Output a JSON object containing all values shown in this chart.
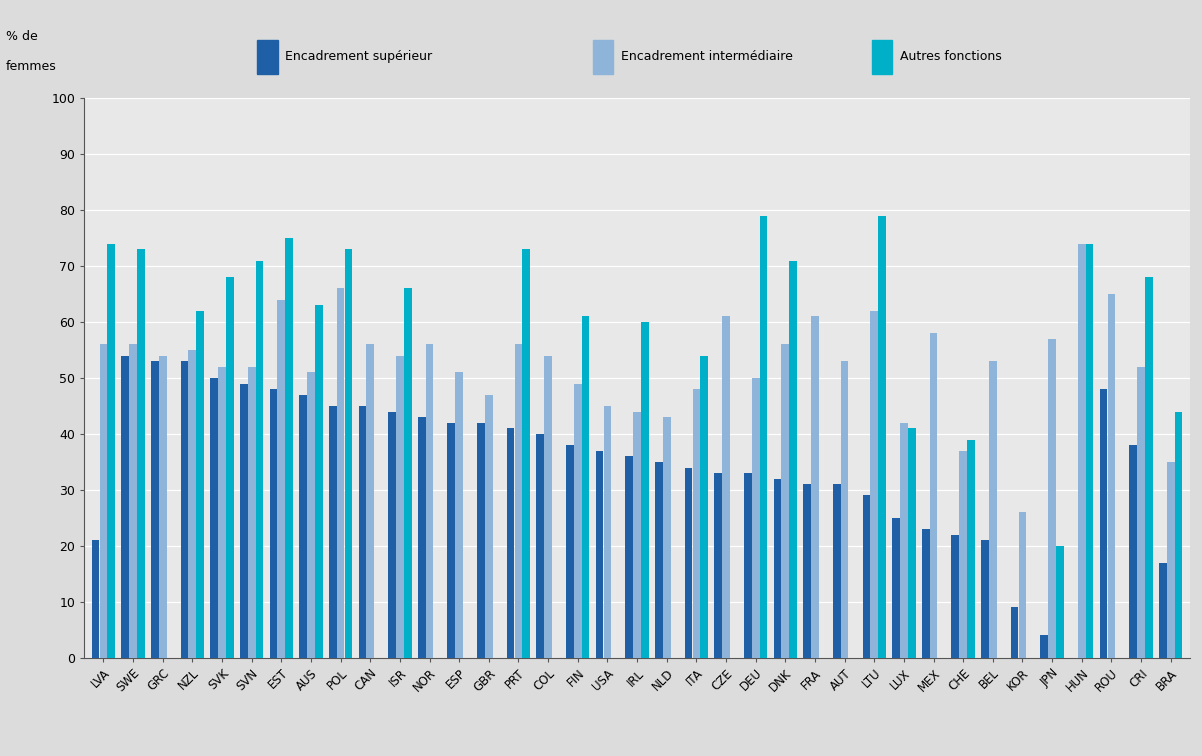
{
  "countries": [
    "LVA",
    "SWE",
    "GRC",
    "NZL",
    "SVK",
    "SVN",
    "EST",
    "AUS",
    "POL",
    "CAN",
    "ISR",
    "NOR",
    "ESP",
    "GBR",
    "PRT",
    "COL",
    "FIN",
    "USA",
    "IRL",
    "NLD",
    "ITA",
    "CZE",
    "DEU",
    "DNK",
    "FRA",
    "AUT",
    "LTU",
    "LUX",
    "MEX",
    "CHE",
    "BEL",
    "KOR",
    "JPN",
    "HUN",
    "ROU",
    "CRI",
    "BRA"
  ],
  "encadrement_superieur": [
    21,
    54,
    53,
    53,
    50,
    49,
    48,
    47,
    45,
    45,
    44,
    43,
    42,
    42,
    41,
    40,
    38,
    37,
    36,
    35,
    34,
    33,
    33,
    32,
    31,
    31,
    29,
    25,
    23,
    22,
    21,
    9,
    4,
    null,
    48,
    38,
    17
  ],
  "encadrement_intermediaire": [
    56,
    56,
    54,
    55,
    52,
    52,
    64,
    51,
    66,
    56,
    54,
    56,
    51,
    47,
    56,
    54,
    49,
    45,
    44,
    43,
    48,
    61,
    50,
    56,
    61,
    53,
    62,
    42,
    58,
    37,
    53,
    26,
    57,
    74,
    65,
    52,
    35
  ],
  "autres_fonctions": [
    74,
    73,
    null,
    62,
    68,
    71,
    75,
    63,
    73,
    null,
    66,
    null,
    null,
    null,
    73,
    null,
    61,
    null,
    60,
    null,
    54,
    null,
    79,
    71,
    null,
    null,
    79,
    41,
    null,
    39,
    null,
    null,
    20,
    74,
    null,
    68,
    44
  ],
  "colors": {
    "encadrement_superieur": "#1f5fa6",
    "encadrement_intermediaire": "#8eb4d9",
    "autres_fonctions": "#00b0c8"
  },
  "ylim": [
    0,
    100
  ],
  "yticks": [
    0,
    10,
    20,
    30,
    40,
    50,
    60,
    70,
    80,
    90,
    100
  ],
  "legend_labels": [
    "Encadrement supérieur",
    "Encadrement intermédiaire",
    "Autres fonctions"
  ],
  "background_color": "#dcdcdc",
  "plot_background": "#e8e8e8",
  "legend_background": "#f0f0f0"
}
